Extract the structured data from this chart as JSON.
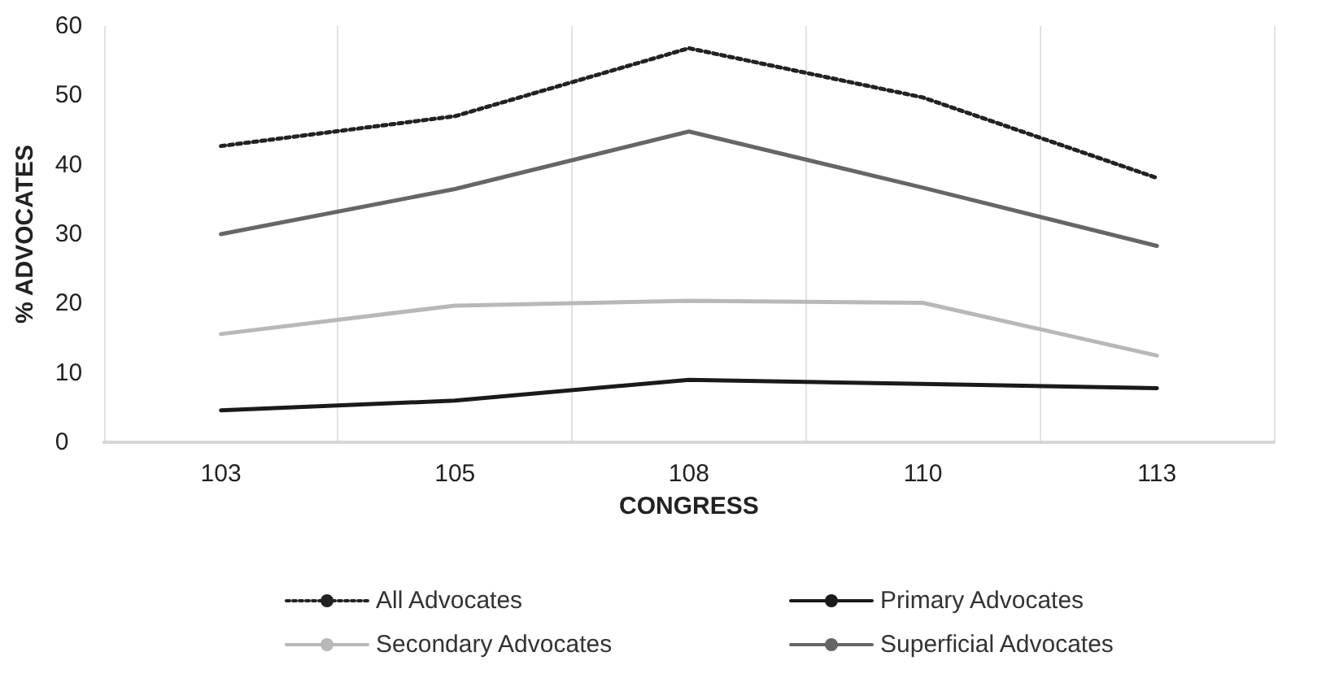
{
  "chart_data": {
    "type": "line",
    "xlabel": "CONGRESS",
    "ylabel": "% ADVOCATES",
    "categories": [
      "103",
      "105",
      "108",
      "110",
      "113"
    ],
    "series": [
      {
        "name": "All Advocates",
        "color": "#222222",
        "line_style": "dotted",
        "values": [
          42.7,
          47.0,
          56.8,
          49.7,
          38.1
        ]
      },
      {
        "name": "Primary Advocates",
        "color": "#1a1a1a",
        "values": [
          4.6,
          6.0,
          9.0,
          8.4,
          7.8
        ]
      },
      {
        "name": "Secondary Advocates",
        "color": "#b8b8b8",
        "values": [
          15.6,
          19.7,
          20.4,
          20.1,
          12.5
        ]
      },
      {
        "name": "Superficial Advocates",
        "color": "#666666",
        "values": [
          30.0,
          36.5,
          44.8,
          36.7,
          28.3
        ]
      }
    ],
    "ylim": [
      0,
      60
    ],
    "yticks": [
      0,
      10,
      20,
      30,
      40,
      50,
      60
    ],
    "grid": "x",
    "legend": "bottom",
    "marker": "none",
    "line_style": "solid"
  }
}
